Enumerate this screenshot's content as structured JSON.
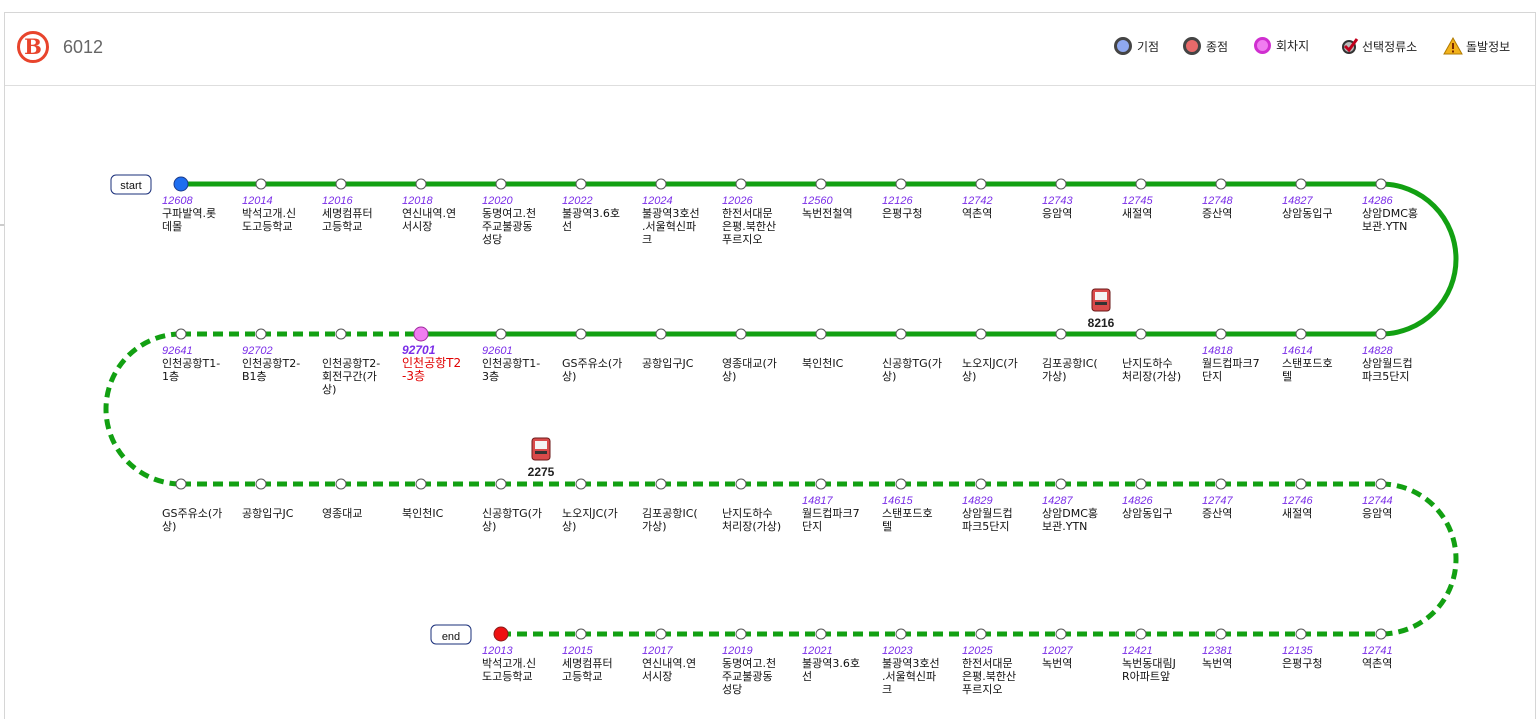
{
  "route": {
    "badge": "B",
    "number": "6012"
  },
  "legend": [
    {
      "label": "기점",
      "color": "#3a78e8",
      "type": "dot"
    },
    {
      "label": "종점",
      "color": "#e84040",
      "type": "dot"
    },
    {
      "label": "회차지",
      "color": "#f07df0",
      "type": "dot-pink"
    },
    {
      "label": "선택정류소",
      "color": "#c0001c",
      "type": "check"
    },
    {
      "label": "돌발정보",
      "color": "#f2b21b",
      "type": "warning"
    }
  ],
  "colors": {
    "line": "#12a012",
    "start": "#1e6ef0",
    "end": "#ee1111",
    "turn": "#f07df0"
  },
  "labels": {
    "start": "start",
    "end": "end"
  },
  "rows": [
    {
      "dir": "ltr",
      "style": "solid",
      "stops": [
        {
          "code": "12608",
          "name": [
            "구파발역.롯",
            "데몰"
          ]
        },
        {
          "code": "12014",
          "name": [
            "박석고개.신",
            "도고등학교"
          ]
        },
        {
          "code": "12016",
          "name": [
            "세명컴퓨터",
            "고등학교"
          ]
        },
        {
          "code": "12018",
          "name": [
            "연신내역.연",
            "서시장"
          ]
        },
        {
          "code": "12020",
          "name": [
            "동명여고.천",
            "주교불광동",
            "성당"
          ]
        },
        {
          "code": "12022",
          "name": [
            "불광역3.6호",
            "선"
          ]
        },
        {
          "code": "12024",
          "name": [
            "불광역3호선",
            ".서울혁신파",
            "크"
          ]
        },
        {
          "code": "12026",
          "name": [
            "한전서대문",
            "은평.북한산",
            "푸르지오"
          ]
        },
        {
          "code": "12560",
          "name": [
            "녹번전철역"
          ]
        },
        {
          "code": "12126",
          "name": [
            "은평구청"
          ]
        },
        {
          "code": "12742",
          "name": [
            "역촌역"
          ]
        },
        {
          "code": "12743",
          "name": [
            "응암역"
          ]
        },
        {
          "code": "12745",
          "name": [
            "새절역"
          ]
        },
        {
          "code": "12748",
          "name": [
            "증산역"
          ]
        },
        {
          "code": "14827",
          "name": [
            "상암동입구"
          ]
        },
        {
          "code": "14286",
          "name": [
            "상암DMC홍",
            "보관.YTN"
          ]
        }
      ]
    },
    {
      "dir": "rtl",
      "style": "mixed",
      "stops": [
        {
          "code": "92641",
          "name": [
            "인천공항T1-",
            "1층"
          ]
        },
        {
          "code": "92702",
          "name": [
            "인천공항T2-",
            "B1층"
          ]
        },
        {
          "code": "",
          "name": [
            "인천공항T2-",
            "회전구간(가",
            "상)"
          ]
        },
        {
          "code": "92701",
          "name": [
            "인천공항T2",
            "-3층"
          ],
          "turn": true
        },
        {
          "code": "92601",
          "name": [
            "인천공항T1-",
            "3층"
          ]
        },
        {
          "code": "",
          "name": [
            "GS주유소(가",
            "상)"
          ]
        },
        {
          "code": "",
          "name": [
            "공항입구JC"
          ]
        },
        {
          "code": "",
          "name": [
            "영종대교(가",
            "상)"
          ]
        },
        {
          "code": "",
          "name": [
            "북인천IC"
          ]
        },
        {
          "code": "",
          "name": [
            "신공항TG(가",
            "상)"
          ]
        },
        {
          "code": "",
          "name": [
            "노오지JC(가",
            "상)"
          ]
        },
        {
          "code": "",
          "name": [
            "김포공항IC(",
            "가상)"
          ]
        },
        {
          "code": "",
          "name": [
            "난지도하수",
            "처리장(가상)"
          ]
        },
        {
          "code": "14818",
          "name": [
            "월드컵파크7",
            "단지"
          ]
        },
        {
          "code": "14614",
          "name": [
            "스탠포드호",
            "텔"
          ]
        },
        {
          "code": "14828",
          "name": [
            "상암월드컵",
            "파크5단지"
          ]
        }
      ]
    },
    {
      "dir": "ltr",
      "style": "dashed",
      "stops": [
        {
          "code": "",
          "name": [
            "GS주유소(가",
            "상)"
          ]
        },
        {
          "code": "",
          "name": [
            "공항입구JC"
          ]
        },
        {
          "code": "",
          "name": [
            "영종대교"
          ]
        },
        {
          "code": "",
          "name": [
            "북인천IC"
          ]
        },
        {
          "code": "",
          "name": [
            "신공항TG(가",
            "상)"
          ]
        },
        {
          "code": "",
          "name": [
            "노오지JC(가",
            "상)"
          ]
        },
        {
          "code": "",
          "name": [
            "김포공항IC(",
            "가상)"
          ]
        },
        {
          "code": "",
          "name": [
            "난지도하수",
            "처리장(가상)"
          ]
        },
        {
          "code": "14817",
          "name": [
            "월드컵파크7",
            "단지"
          ]
        },
        {
          "code": "14615",
          "name": [
            "스탠포드호",
            "텔"
          ]
        },
        {
          "code": "14829",
          "name": [
            "상암월드컵",
            "파크5단지"
          ]
        },
        {
          "code": "14287",
          "name": [
            "상암DMC홍",
            "보관.YTN"
          ]
        },
        {
          "code": "14826",
          "name": [
            "상암동입구"
          ]
        },
        {
          "code": "12747",
          "name": [
            "증산역"
          ]
        },
        {
          "code": "12746",
          "name": [
            "새절역"
          ]
        },
        {
          "code": "12744",
          "name": [
            "응암역"
          ]
        }
      ]
    },
    {
      "dir": "ltr",
      "style": "dashed",
      "stops": [
        {
          "code": "12013",
          "name": [
            "박석고개.신",
            "도고등학교"
          ]
        },
        {
          "code": "12015",
          "name": [
            "세명컴퓨터",
            "고등학교"
          ]
        },
        {
          "code": "12017",
          "name": [
            "연신내역.연",
            "서시장"
          ]
        },
        {
          "code": "12019",
          "name": [
            "동명여고.천",
            "주교불광동",
            "성당"
          ]
        },
        {
          "code": "12021",
          "name": [
            "불광역3.6호",
            "선"
          ]
        },
        {
          "code": "12023",
          "name": [
            "불광역3호선",
            ".서울혁신파",
            "크"
          ]
        },
        {
          "code": "12025",
          "name": [
            "한전서대문",
            "은평.북한산",
            "푸르지오"
          ]
        },
        {
          "code": "12027",
          "name": [
            "녹번역"
          ]
        },
        {
          "code": "12421",
          "name": [
            "녹번동대림J",
            "R아파트앞"
          ]
        },
        {
          "code": "12381",
          "name": [
            "녹번역"
          ]
        },
        {
          "code": "12135",
          "name": [
            "은평구청"
          ]
        },
        {
          "code": "12741",
          "name": [
            "역촌역"
          ]
        }
      ]
    }
  ],
  "buses": [
    {
      "number": "8216"
    },
    {
      "number": "2275"
    }
  ]
}
